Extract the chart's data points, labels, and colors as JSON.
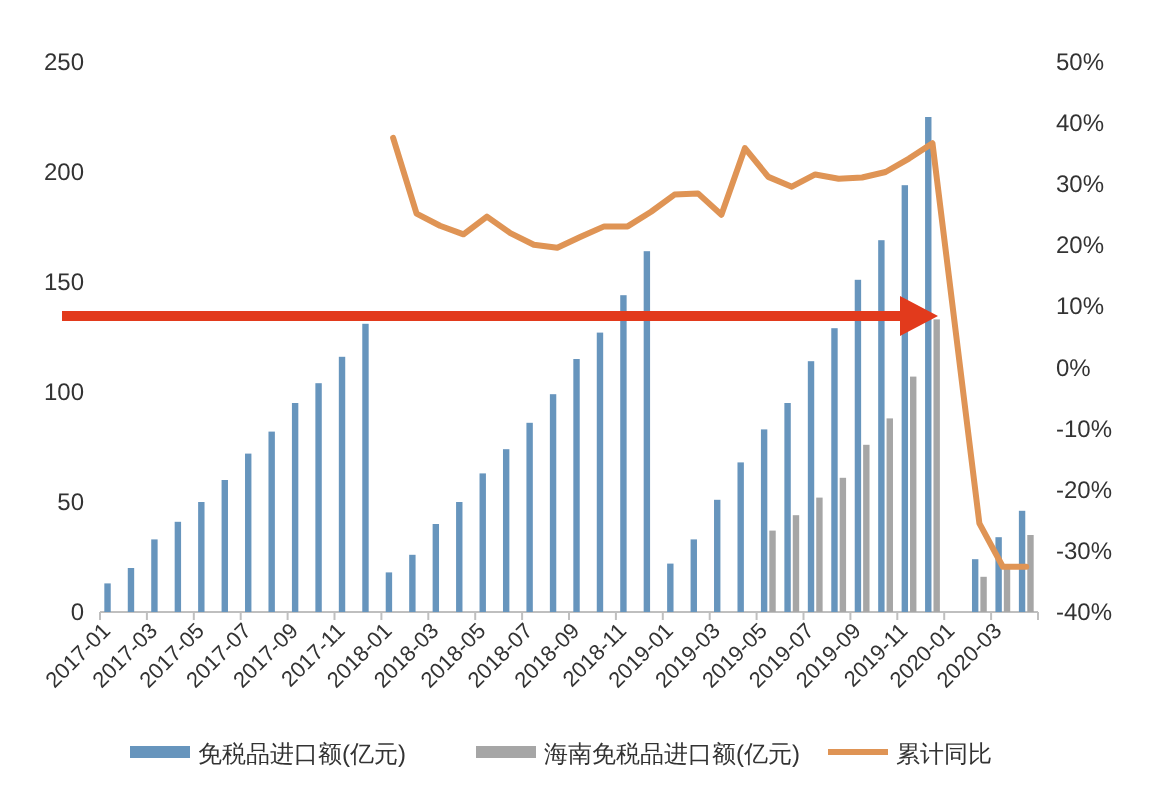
{
  "chart_data": {
    "type": "bar",
    "categories": [
      "2017-01",
      null,
      "2017-03",
      null,
      "2017-05",
      null,
      "2017-07",
      null,
      "2017-09",
      null,
      "2017-11",
      null,
      "2018-01",
      null,
      "2018-03",
      null,
      "2018-05",
      null,
      "2018-07",
      null,
      "2018-09",
      null,
      "2018-11",
      null,
      "2019-01",
      null,
      "2019-03",
      null,
      "2019-05",
      null,
      "2019-07",
      null,
      "2019-09",
      null,
      "2019-11",
      null,
      "2020-01",
      null,
      "2020-03",
      null
    ],
    "series": [
      {
        "name": "免税品进口额(亿元)",
        "color": "#6795bd",
        "values": [
          13,
          20,
          33,
          41,
          50,
          60,
          72,
          82,
          95,
          104,
          116,
          131,
          18,
          26,
          40,
          50,
          63,
          74,
          86,
          99,
          115,
          127,
          144,
          164,
          22,
          33,
          51,
          68,
          83,
          95,
          114,
          129,
          151,
          169,
          194,
          225,
          null,
          24,
          34,
          46
        ]
      },
      {
        "name": "海南免税品进口额(亿元)",
        "color": "#a6a6a6",
        "values": [
          null,
          null,
          null,
          null,
          null,
          null,
          null,
          null,
          null,
          null,
          null,
          null,
          null,
          null,
          null,
          null,
          null,
          null,
          null,
          null,
          null,
          null,
          null,
          null,
          null,
          null,
          null,
          null,
          37,
          44,
          52,
          61,
          76,
          88,
          107,
          133,
          null,
          16,
          21,
          35
        ]
      },
      {
        "name": "累计同比",
        "type": "line",
        "axis": "y2",
        "color": "#df9455",
        "values": [
          null,
          null,
          null,
          null,
          null,
          null,
          null,
          null,
          null,
          null,
          null,
          null,
          37.6,
          25.2,
          23.2,
          21.8,
          24.7,
          22,
          20.1,
          19.6,
          21.4,
          23.1,
          23.1,
          25.5,
          28.3,
          28.5,
          25,
          35.9,
          31.2,
          29.6,
          31.6,
          30.9,
          31.1,
          32,
          34.2,
          36.7,
          null,
          -25.5,
          -32.6,
          -32.6
        ]
      }
    ],
    "ylim": [
      0,
      250
    ],
    "yticks": [
      0,
      50,
      100,
      150,
      200,
      250
    ],
    "y2lim": [
      -40,
      50
    ],
    "y2ticks": [
      {
        "value": -40,
        "label": "-40%"
      },
      {
        "value": -30,
        "label": "-30%"
      },
      {
        "value": -20,
        "label": "-20%"
      },
      {
        "value": -10,
        "label": "-10%"
      },
      {
        "value": 0,
        "label": "0%"
      },
      {
        "value": 10,
        "label": "10%"
      },
      {
        "value": 20,
        "label": "20%"
      },
      {
        "value": 30,
        "label": "30%"
      },
      {
        "value": 40,
        "label": "40%"
      },
      {
        "value": 50,
        "label": "50%"
      }
    ],
    "grid": false,
    "legend": "bottom"
  }
}
